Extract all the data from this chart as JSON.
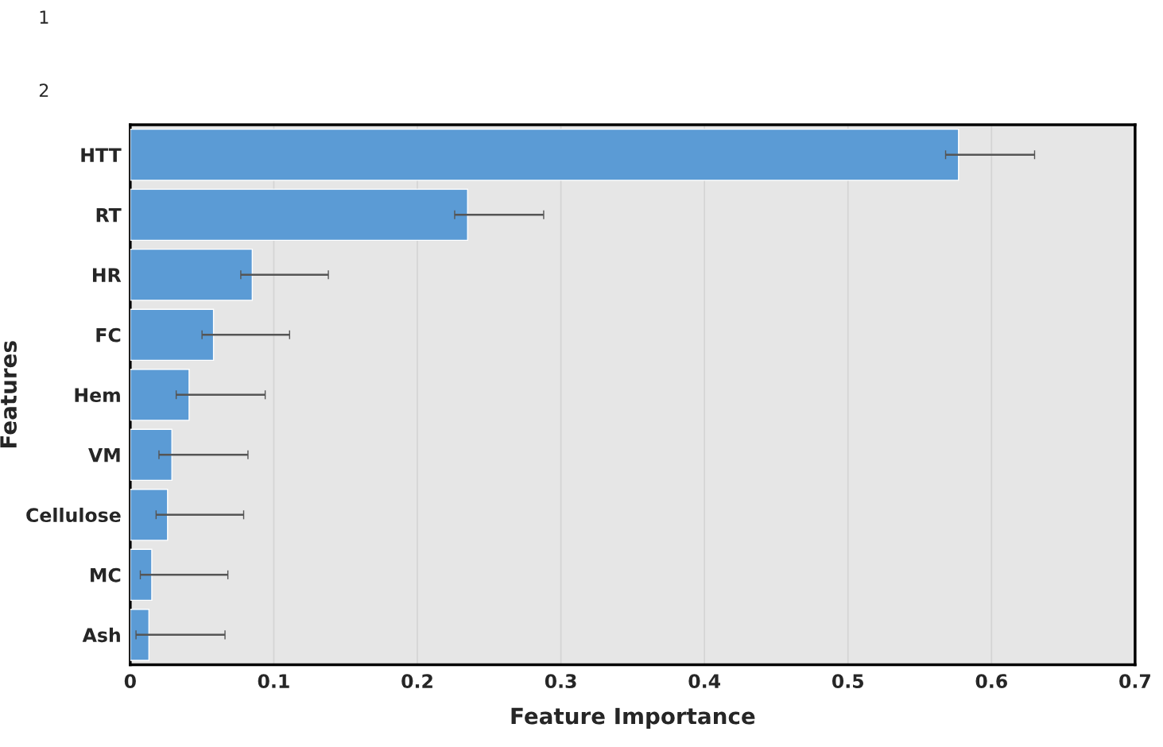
{
  "chart_data": {
    "type": "bar",
    "orientation": "horizontal",
    "xlabel": "Feature Importance",
    "ylabel": "Features",
    "categories": [
      "HTT",
      "RT",
      "HR",
      "FC",
      "Hem",
      "VM",
      "Cellulose",
      "MC",
      "Ash"
    ],
    "values": [
      0.577,
      0.235,
      0.085,
      0.058,
      0.041,
      0.029,
      0.026,
      0.015,
      0.013
    ],
    "errors": [
      [
        0.568,
        0.63
      ],
      [
        0.226,
        0.288
      ],
      [
        0.077,
        0.138
      ],
      [
        0.05,
        0.111
      ],
      [
        0.032,
        0.094
      ],
      [
        0.02,
        0.082
      ],
      [
        0.018,
        0.079
      ],
      [
        0.007,
        0.068
      ],
      [
        0.004,
        0.066
      ]
    ],
    "color": "#5b9bd5",
    "xlim": [
      0,
      0.7
    ],
    "xticks": [
      0,
      0.1,
      0.2,
      0.3,
      0.4,
      0.5,
      0.6,
      0.7
    ],
    "grid": "x",
    "annotations": [
      "1",
      "2"
    ]
  }
}
